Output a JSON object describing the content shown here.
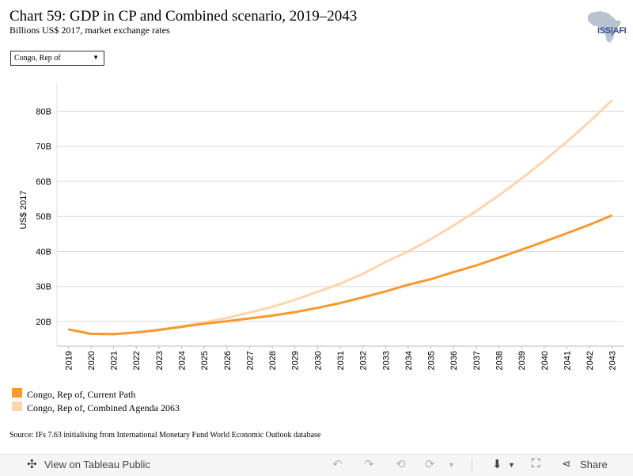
{
  "header": {
    "title": "Chart 59: GDP in CP and Combined scenario, 2019–2043",
    "subtitle": "Billions US$ 2017, market exchange rates"
  },
  "logo": {
    "text": "ISS|AFI"
  },
  "country_select": {
    "value": "Congo, Rep of"
  },
  "chart_data": {
    "type": "line",
    "x": [
      "2019",
      "2020",
      "2021",
      "2022",
      "2023",
      "2024",
      "2025",
      "2026",
      "2027",
      "2028",
      "2029",
      "2030",
      "2031",
      "2032",
      "2033",
      "2034",
      "2035",
      "2036",
      "2037",
      "2038",
      "2039",
      "2040",
      "2041",
      "2042",
      "2043"
    ],
    "series": [
      {
        "name": "Congo, Rep of, Current Path",
        "color": "#f59a2f",
        "values": [
          17.8,
          16.5,
          16.4,
          16.9,
          17.6,
          18.5,
          19.4,
          20.1,
          20.9,
          21.7,
          22.7,
          23.9,
          25.3,
          26.9,
          28.6,
          30.5,
          32.1,
          34.1,
          36.0,
          38.2,
          40.5,
          42.8,
          45.2,
          47.6,
          50.3
        ]
      },
      {
        "name": "Congo, Rep of, Combined Agenda 2063",
        "color": "#fdd5ad",
        "values": [
          17.8,
          16.5,
          16.4,
          16.9,
          17.7,
          18.7,
          19.8,
          21.0,
          22.6,
          24.2,
          26.2,
          28.5,
          30.8,
          33.6,
          37.0,
          40.0,
          43.5,
          47.4,
          51.5,
          56.0,
          60.8,
          65.9,
          71.3,
          77.0,
          83.2
        ]
      }
    ],
    "ylabel": "US$ 2017",
    "ytick_labels": [
      "20B",
      "30B",
      "40B",
      "50B",
      "60B",
      "70B",
      "80B"
    ],
    "ytick_values": [
      20,
      30,
      40,
      50,
      60,
      70,
      80
    ],
    "ylim": [
      13,
      88
    ],
    "grid": true
  },
  "legend": {
    "items": [
      {
        "label": "Congo, Rep of, Current Path",
        "color": "#f59a2f"
      },
      {
        "label": "Congo, Rep of, Combined Agenda 2063",
        "color": "#fdd5ad"
      }
    ]
  },
  "source": "Source: IFs 7.63 initialising from International Monetary Fund World Economic Outlook database",
  "toolbar": {
    "view_label": "View on Tableau Public",
    "share_label": "Share",
    "icons": [
      "tableau-icon",
      "undo-icon",
      "redo-icon",
      "revert-icon",
      "refresh-icon",
      "download-icon",
      "fullscreen-icon",
      "share-icon"
    ]
  }
}
